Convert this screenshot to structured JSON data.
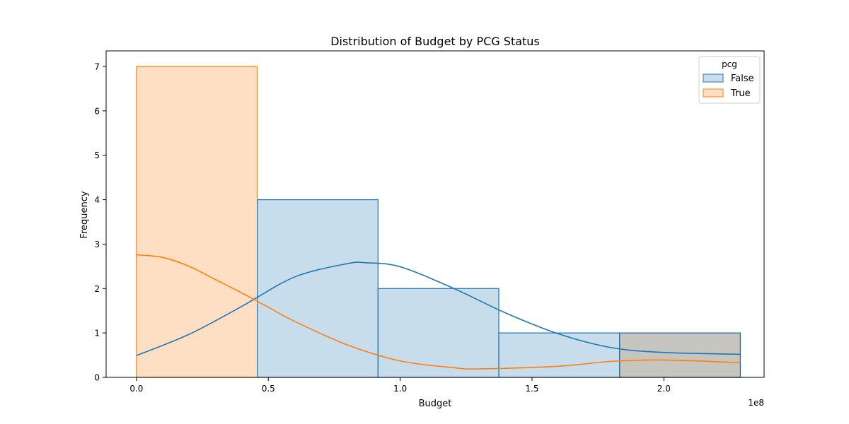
{
  "chart_data": {
    "type": "histogram",
    "title": "Distribution of Budget by PCG Status",
    "xlabel": "Budget",
    "ylabel": "Frequency",
    "x_offset_label": "1e8",
    "xlim": [
      -0.115,
      2.38
    ],
    "ylim": [
      0,
      7.35
    ],
    "x_ticks": [
      0.0,
      0.5,
      1.0,
      1.5,
      2.0
    ],
    "x_tick_labels": [
      "0.0",
      "0.5",
      "1.0",
      "1.5",
      "2.0"
    ],
    "y_ticks": [
      0,
      1,
      2,
      3,
      4,
      5,
      6,
      7
    ],
    "y_tick_labels": [
      "0",
      "1",
      "2",
      "3",
      "4",
      "5",
      "6",
      "7"
    ],
    "bin_edges": [
      0.0,
      0.458,
      0.916,
      1.374,
      1.832,
      2.29
    ],
    "legend": {
      "title": "pcg",
      "position": "top-right"
    },
    "series": [
      {
        "name": "False",
        "counts": [
          0,
          4,
          2,
          1,
          1
        ],
        "color": "#1f77b4",
        "fill": "rgba(31,119,180,0.25)",
        "kde_x": [
          0.0,
          0.2,
          0.4,
          0.6,
          0.8,
          0.87,
          1.0,
          1.2,
          1.4,
          1.6,
          1.8,
          2.0,
          2.29
        ],
        "kde_y": [
          0.49,
          0.97,
          1.6,
          2.26,
          2.56,
          2.58,
          2.49,
          2.01,
          1.45,
          0.98,
          0.67,
          0.56,
          0.52
        ]
      },
      {
        "name": "True",
        "counts": [
          7,
          0,
          0,
          0,
          1
        ],
        "color": "#ff7f0e",
        "fill": "rgba(255,127,14,0.25)",
        "kde_x": [
          0.0,
          0.1,
          0.2,
          0.3,
          0.4,
          0.5,
          0.6,
          0.8,
          1.0,
          1.2,
          1.3,
          1.6,
          1.8,
          2.0,
          2.29
        ],
        "kde_y": [
          2.76,
          2.7,
          2.5,
          2.2,
          1.9,
          1.58,
          1.26,
          0.73,
          0.37,
          0.22,
          0.19,
          0.25,
          0.36,
          0.39,
          0.33
        ]
      }
    ]
  }
}
